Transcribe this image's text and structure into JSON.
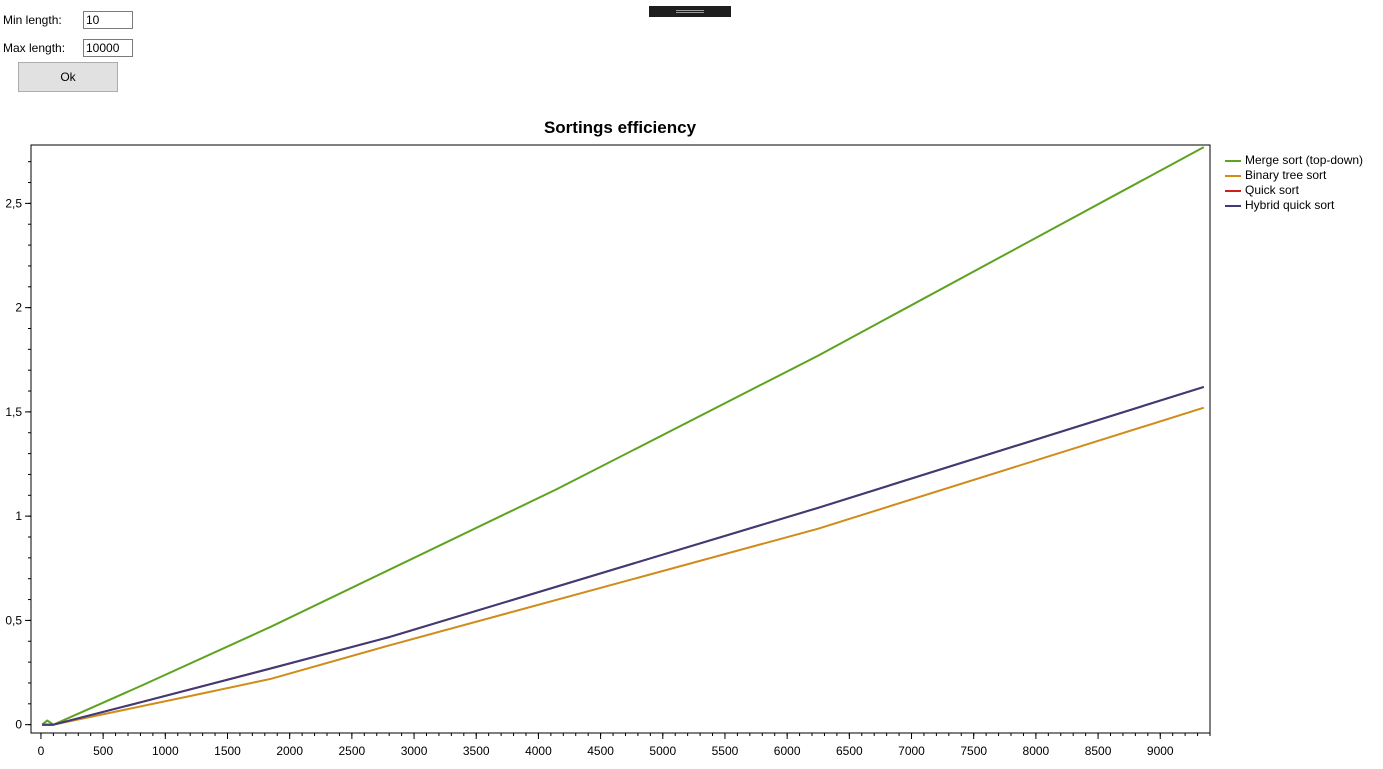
{
  "form": {
    "min_label": "Min length:",
    "min_value": "10",
    "max_label": "Max length:",
    "max_value": "10000",
    "ok_label": "Ok"
  },
  "chart_data": {
    "type": "line",
    "title": "Sortings efficiency",
    "xlabel": "",
    "ylabel": "",
    "xlim": [
      -80,
      9400
    ],
    "ylim": [
      -0.04,
      2.78
    ],
    "xticks": [
      "0",
      "500",
      "1000",
      "1500",
      "2000",
      "2500",
      "3000",
      "3500",
      "4000",
      "4500",
      "5000",
      "5500",
      "6000",
      "6500",
      "7000",
      "7500",
      "8000",
      "8500",
      "9000"
    ],
    "yticks": [
      "0",
      "0,5",
      "1",
      "1,5",
      "2",
      "2,5"
    ],
    "grid": false,
    "legend_position": "right",
    "series": [
      {
        "name": "Merge sort (top-down)",
        "color": "#5ea320",
        "x": [
          10,
          50,
          100,
          820,
          1850,
          4150,
          6250,
          9350
        ],
        "y": [
          0,
          0.02,
          0,
          0.19,
          0.47,
          1.13,
          1.77,
          2.77
        ]
      },
      {
        "name": "Binary tree sort",
        "color": "#d08c1a",
        "x": [
          10,
          100,
          1220,
          1850,
          2800,
          6250,
          9350
        ],
        "y": [
          0,
          0,
          0.14,
          0.22,
          0.38,
          0.94,
          1.52
        ]
      },
      {
        "name": "Quick sort",
        "color": "#cc1f1f",
        "x": [
          10,
          100,
          820,
          1850,
          2800,
          6250,
          9350
        ],
        "y": [
          0,
          0,
          0.11,
          0.27,
          0.42,
          1.04,
          1.62
        ]
      },
      {
        "name": "Hybrid quick sort",
        "color": "#3c3c78",
        "x": [
          10,
          100,
          820,
          1850,
          2800,
          6250,
          9350
        ],
        "y": [
          0,
          0,
          0.11,
          0.27,
          0.42,
          1.04,
          1.62
        ]
      }
    ]
  }
}
